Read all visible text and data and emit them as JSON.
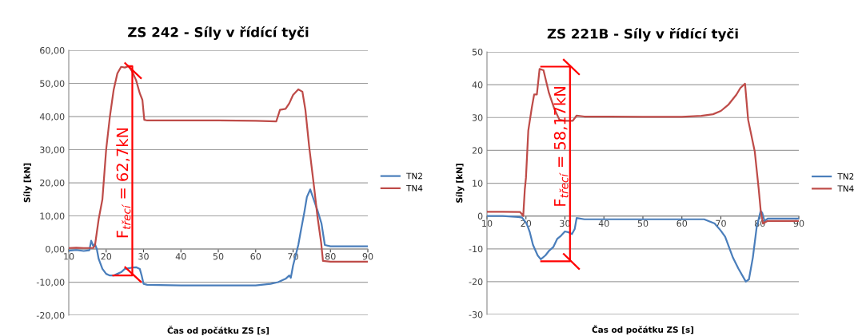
{
  "chart_data": [
    {
      "type": "line",
      "title": "ZS 242 - Síly v řídící tyči",
      "xlabel": "Čas od počátku ZS [s]",
      "ylabel": "Síly [kN]",
      "xlim": [
        10,
        90
      ],
      "xticks": [
        10,
        20,
        30,
        40,
        50,
        60,
        70,
        80,
        90
      ],
      "ylim": [
        -20,
        60
      ],
      "yticks": [
        {
          "value": -20,
          "label": "-20,00"
        },
        {
          "value": -10,
          "label": "-10,00"
        },
        {
          "value": 0,
          "label": "0,00"
        },
        {
          "value": 10,
          "label": "10,00"
        },
        {
          "value": 20,
          "label": "20,00"
        },
        {
          "value": 30,
          "label": "30,00"
        },
        {
          "value": 40,
          "label": "40,00"
        },
        {
          "value": 50,
          "label": "50,00"
        },
        {
          "value": 60,
          "label": "60,00"
        }
      ],
      "grid": "y",
      "legend": "right",
      "marker": "none",
      "line_style": "solid",
      "annotations": [
        "F$_{třecí}$ = 62,7kN"
      ],
      "series": [
        {
          "name": "TN2",
          "color": "#4a7ebb",
          "x": [
            10,
            12,
            14,
            15.5,
            16,
            16.5,
            17,
            17.5,
            18,
            19,
            20,
            21,
            22,
            23,
            24,
            25,
            26,
            27,
            28,
            29,
            29.5,
            30,
            31,
            40,
            50,
            60,
            64,
            66,
            68,
            69,
            69.4,
            70,
            71.4,
            72,
            73,
            73.7,
            74.6,
            75.5,
            76.5,
            77.6,
            78.5,
            80,
            85,
            90
          ],
          "values": [
            -0.5,
            -0.3,
            -0.6,
            -0.4,
            2.5,
            1,
            1.5,
            0,
            -3,
            -6,
            -7.5,
            -8,
            -8,
            -7.5,
            -7,
            -6,
            -5.8,
            -5.6,
            -5.5,
            -6,
            -8,
            -10.5,
            -10.8,
            -11,
            -11,
            -11,
            -10.5,
            -10,
            -9,
            -8,
            -8.7,
            -5,
            1.2,
            5,
            11,
            15.7,
            18,
            15,
            11.8,
            7.7,
            1.2,
            0.8,
            0.8,
            0.8
          ]
        },
        {
          "name": "TN4",
          "color": "#be4b48",
          "x": [
            10,
            12,
            14,
            16.5,
            17,
            17.5,
            18,
            19,
            20,
            21,
            22,
            23,
            24,
            25,
            26,
            27,
            28,
            29,
            29.7,
            30.2,
            31,
            40,
            50,
            60,
            65.5,
            66.5,
            68,
            69,
            70,
            71.4,
            72.5,
            73.3,
            74.3,
            75.7,
            76.5,
            77.5,
            78,
            80,
            85,
            90
          ],
          "values": [
            0.3,
            0.4,
            0.3,
            0.3,
            1,
            5,
            9,
            15,
            30,
            40,
            48,
            53,
            55,
            54.8,
            55.2,
            53.5,
            51,
            47,
            45,
            39,
            38.8,
            38.8,
            38.8,
            38.7,
            38.5,
            42,
            42.3,
            44,
            46.5,
            48.2,
            47.5,
            42,
            31,
            18,
            10,
            2,
            -3.6,
            -3.8,
            -3.8,
            -3.8
          ]
        },
        {
          "color": "#ff0000",
          "x": [
            21.9,
            27,
            27,
            26
          ],
          "values": [
            -8,
            -8,
            55.2,
            55.2
          ]
        },
        {
          "color": "#ff0000",
          "x": [
            25.1,
            29.3
          ],
          "values": [
            56.1,
            51.6
          ]
        },
        {
          "color": "#ff0000",
          "x": [
            25.1,
            29.3
          ],
          "values": [
            -5.5,
            -9.9
          ]
        }
      ]
    },
    {
      "type": "line",
      "title": "ZS 221B - Síly v řídící tyči",
      "xlabel": "Čas od počátku ZS [s]",
      "ylabel": "Síly [kN]",
      "xlim": [
        10,
        90
      ],
      "xticks": [
        10,
        20,
        30,
        40,
        50,
        60,
        70,
        80,
        90
      ],
      "ylim": [
        -30,
        50
      ],
      "yticks": [
        -30,
        -20,
        -10,
        0,
        10,
        20,
        30,
        40,
        50
      ],
      "grid": "y",
      "legend": "right",
      "marker": "none",
      "line_style": "solid",
      "annotations": [
        "F$_{třecí}$ = 58,17kN"
      ],
      "series": [
        {
          "name": "TN2",
          "color": "#4a7ebb",
          "x": [
            10,
            14,
            18,
            19,
            20,
            20.4,
            21,
            21.8,
            23,
            23.8,
            25,
            26,
            27,
            28,
            29,
            30,
            31,
            31.8,
            32.5,
            33,
            35,
            50,
            60,
            65.7,
            68.4,
            70,
            71.1,
            73.1,
            74.5,
            76.4,
            77.2,
            78.2,
            79.2,
            80.2,
            80.6,
            81.2,
            82,
            90
          ],
          "values": [
            0,
            0,
            -0.3,
            -0.5,
            -2,
            -3,
            -5,
            -8.8,
            -12,
            -13.2,
            -12,
            -10.5,
            -9.5,
            -7,
            -6,
            -4.7,
            -5,
            -5.5,
            -4,
            -0.6,
            -1,
            -1,
            -1,
            -1,
            -2.3,
            -4.5,
            -6.3,
            -12.7,
            -16,
            -20,
            -19.3,
            -12.7,
            -3.3,
            1.5,
            1,
            -1.5,
            -0.8,
            -0.8
          ]
        },
        {
          "name": "TN4",
          "color": "#be4b48",
          "x": [
            10,
            14,
            18.5,
            19,
            19.3,
            19.7,
            20,
            20.6,
            21.5,
            22.1,
            22.8,
            23.5,
            24.5,
            25.9,
            27.3,
            28.6,
            30,
            32,
            33,
            35,
            50,
            60,
            65,
            68,
            70,
            72,
            74,
            75,
            76.2,
            77,
            78.7,
            79.7,
            80.2,
            80.8,
            82,
            90
          ],
          "values": [
            1.3,
            1.3,
            1.2,
            0.5,
            0,
            8,
            11.6,
            26,
            33,
            37,
            37,
            44.8,
            44.4,
            37.5,
            32.6,
            29.3,
            29,
            29,
            30.6,
            30.3,
            30.2,
            30.2,
            30.5,
            31,
            32,
            34,
            37,
            39,
            40.3,
            29.3,
            19.6,
            8.3,
            1.9,
            -2.3,
            -1.5,
            -1.5
          ]
        },
        {
          "color": "#ff0000",
          "x": [
            23.9,
            31.3,
            31.3,
            23.9
          ],
          "values": [
            -13.8,
            -13.8,
            45.5,
            45.5
          ]
        },
        {
          "color": "#ff0000",
          "x": [
            29.7,
            33.6
          ],
          "values": [
            47.6,
            43.2
          ]
        },
        {
          "color": "#ff0000",
          "x": [
            29.7,
            33.6
          ],
          "values": [
            -11.6,
            -16.1
          ]
        }
      ]
    }
  ]
}
